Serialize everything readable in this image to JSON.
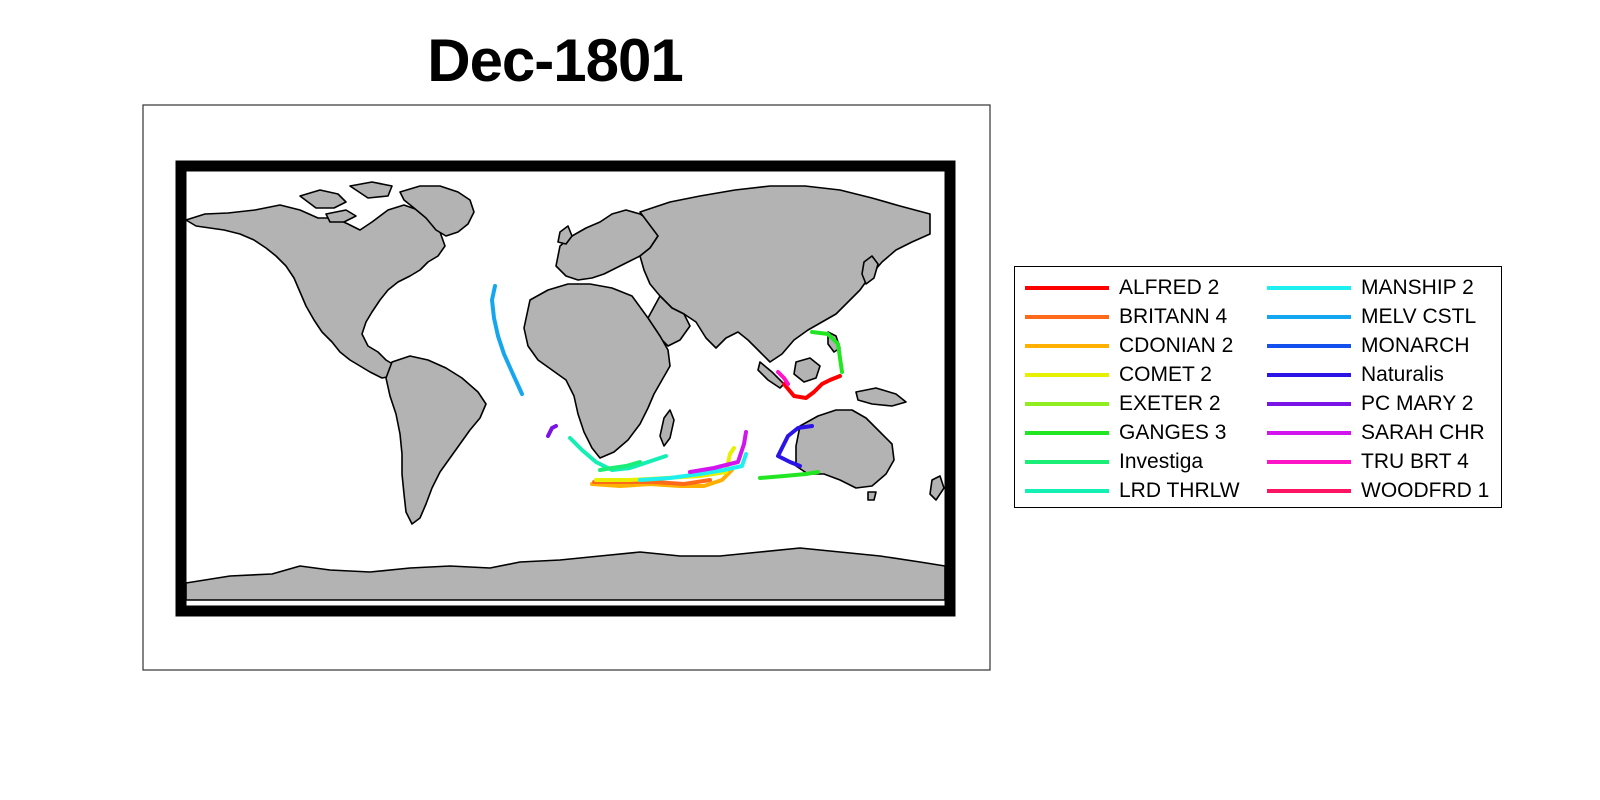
{
  "title": "Dec-1801",
  "map": {
    "land_color": "#b3b3b3",
    "ocean_color": "#ffffff",
    "frame_color": "#000000"
  },
  "legend_columns": [
    [
      {
        "name": "ALFRED 2",
        "color": "#ff0000"
      },
      {
        "name": "BRITANN 4",
        "color": "#ff6a1a"
      },
      {
        "name": "CDONIAN 2",
        "color": "#ffb000"
      },
      {
        "name": "COMET 2",
        "color": "#e6f000"
      },
      {
        "name": "EXETER 2",
        "color": "#90ee20"
      },
      {
        "name": "GANGES 3",
        "color": "#22e622"
      },
      {
        "name": "Investiga",
        "color": "#1aee77"
      },
      {
        "name": "LRD THRLW",
        "color": "#14f0b4"
      }
    ],
    [
      {
        "name": "MANSHIP 2",
        "color": "#1ef0f0"
      },
      {
        "name": "MELV CSTL",
        "color": "#14a6ee"
      },
      {
        "name": "MONARCH",
        "color": "#1450ee"
      },
      {
        "name": "Naturalis",
        "color": "#2a14e6"
      },
      {
        "name": "PC MARY 2",
        "color": "#7a14e6"
      },
      {
        "name": "SARAH CHR",
        "color": "#d214ee"
      },
      {
        "name": "TRU BRT 4",
        "color": "#ff14c8"
      },
      {
        "name": "WOODFRD 1",
        "color": "#ff1464"
      }
    ]
  ]
}
